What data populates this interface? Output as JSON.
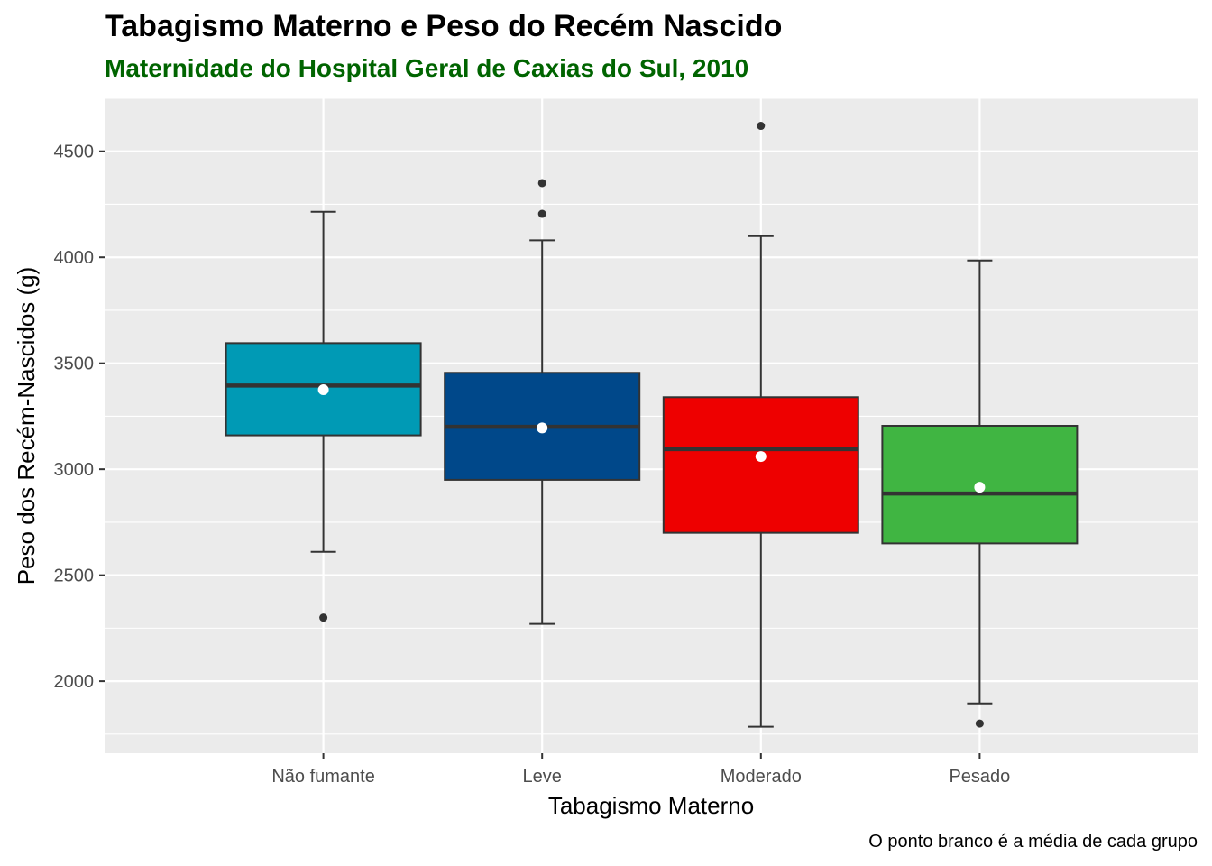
{
  "chart_data": {
    "type": "boxplot",
    "title": "Tabagismo Materno e Peso do Recém Nascido",
    "subtitle": "Maternidade do Hospital Geral de Caxias do Sul, 2010",
    "caption": "O ponto branco é a média de cada grupo",
    "xlabel": "Tabagismo Materno",
    "ylabel": "Peso dos Recém-Nascidos (g)",
    "ylim": [
      1660,
      4750
    ],
    "y_major_ticks": [
      2000,
      2500,
      3000,
      3500,
      4000,
      4500
    ],
    "y_minor_ticks": [
      1750,
      2250,
      2750,
      3250,
      3750,
      4250,
      4750
    ],
    "grid": true,
    "legend": "none",
    "categories": [
      "Não fumante",
      "Leve",
      "Moderado",
      "Pesado"
    ],
    "groups": [
      {
        "name": "Não fumante",
        "color": "#009AB5",
        "whisker_low": 2610,
        "q1": 3160,
        "median": 3395,
        "q3": 3595,
        "whisker_high": 4215,
        "mean": 3375,
        "outliers": [
          2300
        ]
      },
      {
        "name": "Leve",
        "color": "#00488A",
        "whisker_low": 2270,
        "q1": 2950,
        "median": 3200,
        "q3": 3455,
        "whisker_high": 4080,
        "mean": 3195,
        "outliers": [
          4205,
          4350
        ]
      },
      {
        "name": "Moderado",
        "color": "#EE0000",
        "whisker_low": 1785,
        "q1": 2700,
        "median": 3095,
        "q3": 3340,
        "whisker_high": 4100,
        "mean": 3060,
        "outliers": [
          4620
        ]
      },
      {
        "name": "Pesado",
        "color": "#40B542",
        "whisker_low": 1895,
        "q1": 2650,
        "median": 2885,
        "q3": 3205,
        "whisker_high": 3985,
        "mean": 2915,
        "outliers": [
          1800
        ]
      }
    ]
  }
}
